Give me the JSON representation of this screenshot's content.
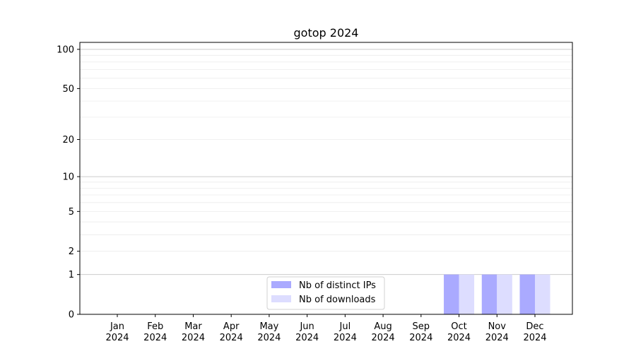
{
  "chart_data": {
    "type": "bar",
    "title": "gotop 2024",
    "xlabel": "",
    "ylabel": "",
    "yscale": "log(1+y)",
    "ylim": [
      0,
      113
    ],
    "yticks": [
      0,
      1,
      2,
      5,
      10,
      20,
      50,
      100
    ],
    "grid": true,
    "legend_position": "lower center",
    "categories": [
      "Jan\n2024",
      "Feb\n2024",
      "Mar\n2024",
      "Apr\n2024",
      "May\n2024",
      "Jun\n2024",
      "Jul\n2024",
      "Aug\n2024",
      "Sep\n2024",
      "Oct\n2024",
      "Nov\n2024",
      "Dec\n2024"
    ],
    "series": [
      {
        "name": "Nb of distinct IPs",
        "color": "#aaaaff",
        "values": [
          0,
          0,
          0,
          0,
          0,
          0,
          0,
          0,
          0,
          1,
          1,
          1
        ]
      },
      {
        "name": "Nb of downloads",
        "color": "#ddddff",
        "values": [
          0,
          0,
          0,
          0,
          0,
          0,
          0,
          0,
          0,
          1,
          1,
          1
        ]
      }
    ]
  }
}
